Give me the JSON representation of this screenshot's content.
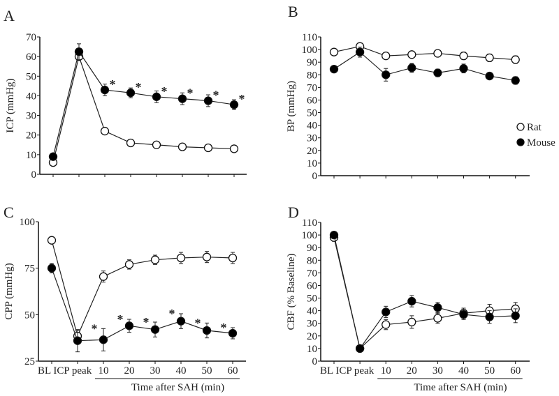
{
  "chart_data": [
    {
      "panel": "A",
      "type": "line",
      "ylabel": "ICP (mmHg)",
      "ylim": [
        0,
        70
      ],
      "yticks": [
        0,
        10,
        20,
        30,
        40,
        50,
        60,
        70
      ],
      "categories": [
        "BL",
        "ICP peak",
        "10",
        "20",
        "30",
        "40",
        "50",
        "60"
      ],
      "show_xlabels": false,
      "series": [
        {
          "name": "Rat",
          "filled": false,
          "values": [
            6,
            60,
            22,
            16,
            15,
            14,
            13.5,
            13
          ],
          "errors": [
            0,
            1,
            1,
            0.5,
            0.5,
            0.5,
            0.5,
            0.5
          ]
        },
        {
          "name": "Mouse",
          "filled": true,
          "values": [
            9,
            62.5,
            43,
            41.5,
            39.5,
            38.5,
            37.5,
            35.5
          ],
          "errors": [
            0,
            4,
            3,
            2.5,
            3,
            3,
            3,
            2.5
          ]
        }
      ],
      "significance": {
        "symbol": "*",
        "series": "Mouse",
        "indices": [
          2,
          3,
          4,
          5,
          6,
          7
        ],
        "side": "right"
      }
    },
    {
      "panel": "B",
      "type": "line",
      "ylabel": "BP (mmHg)",
      "ylim": [
        0,
        110
      ],
      "yticks": [
        0,
        10,
        20,
        30,
        40,
        50,
        60,
        70,
        80,
        90,
        100,
        110
      ],
      "categories": [
        "BL",
        "ICP peak",
        "10",
        "20",
        "30",
        "40",
        "50",
        "60"
      ],
      "show_xlabels": false,
      "legend": {
        "placement": "right",
        "entries": [
          "Rat",
          "Mouse"
        ]
      },
      "series": [
        {
          "name": "Rat",
          "filled": false,
          "values": [
            98,
            102.5,
            95,
            96,
            97,
            95,
            93.5,
            92
          ],
          "errors": [
            1,
            2,
            1,
            2,
            2,
            3,
            3,
            3
          ]
        },
        {
          "name": "Mouse",
          "filled": true,
          "values": [
            84.5,
            98,
            80,
            85.5,
            81.5,
            85,
            79,
            75.5
          ],
          "errors": [
            1,
            4,
            5,
            3.5,
            3,
            3.5,
            2.5,
            3
          ]
        }
      ]
    },
    {
      "panel": "C",
      "type": "line",
      "ylabel": "CPP (mmHg)",
      "ylim": [
        25,
        100
      ],
      "yticks": [
        25,
        50,
        75,
        100
      ],
      "categories": [
        "BL",
        "ICP peak",
        "10",
        "20",
        "30",
        "40",
        "50",
        "60"
      ],
      "show_xlabels": true,
      "xlabel": "Time after SAH (min)",
      "series": [
        {
          "name": "Rat",
          "filled": false,
          "values": [
            90,
            38.5,
            70.5,
            77,
            79.5,
            80.5,
            81,
            80.5
          ],
          "errors": [
            0,
            3,
            3,
            2.5,
            2.5,
            3,
            3,
            3
          ]
        },
        {
          "name": "Mouse",
          "filled": true,
          "values": [
            75,
            36,
            36.5,
            44,
            42,
            46.5,
            41.5,
            40
          ],
          "errors": [
            2.5,
            6,
            6,
            3.5,
            4,
            4,
            4,
            3
          ]
        }
      ],
      "significance": {
        "symbol": "*",
        "series": "Mouse",
        "indices": [
          2,
          3,
          4,
          5,
          6,
          7
        ],
        "side": "left"
      }
    },
    {
      "panel": "D",
      "type": "line",
      "ylabel": "CBF (% Baseline)",
      "ylim": [
        0,
        110
      ],
      "yticks": [
        0,
        10,
        20,
        30,
        40,
        50,
        60,
        70,
        80,
        90,
        100,
        110
      ],
      "categories": [
        "BL",
        "ICP peak",
        "10",
        "20",
        "30",
        "40",
        "50",
        "60"
      ],
      "show_xlabels": true,
      "xlabel": "Time after SAH (min)",
      "series": [
        {
          "name": "Rat",
          "filled": false,
          "values": [
            98,
            10,
            29,
            31,
            34,
            38,
            40,
            41.5
          ],
          "errors": [
            3,
            1,
            4,
            5,
            4,
            4,
            5,
            5
          ]
        },
        {
          "name": "Mouse",
          "filled": true,
          "values": [
            100,
            10,
            39,
            47.5,
            42.5,
            37,
            35,
            36
          ],
          "errors": [
            1,
            1,
            4.5,
            4.5,
            4,
            4,
            5,
            5.5
          ]
        }
      ]
    }
  ]
}
